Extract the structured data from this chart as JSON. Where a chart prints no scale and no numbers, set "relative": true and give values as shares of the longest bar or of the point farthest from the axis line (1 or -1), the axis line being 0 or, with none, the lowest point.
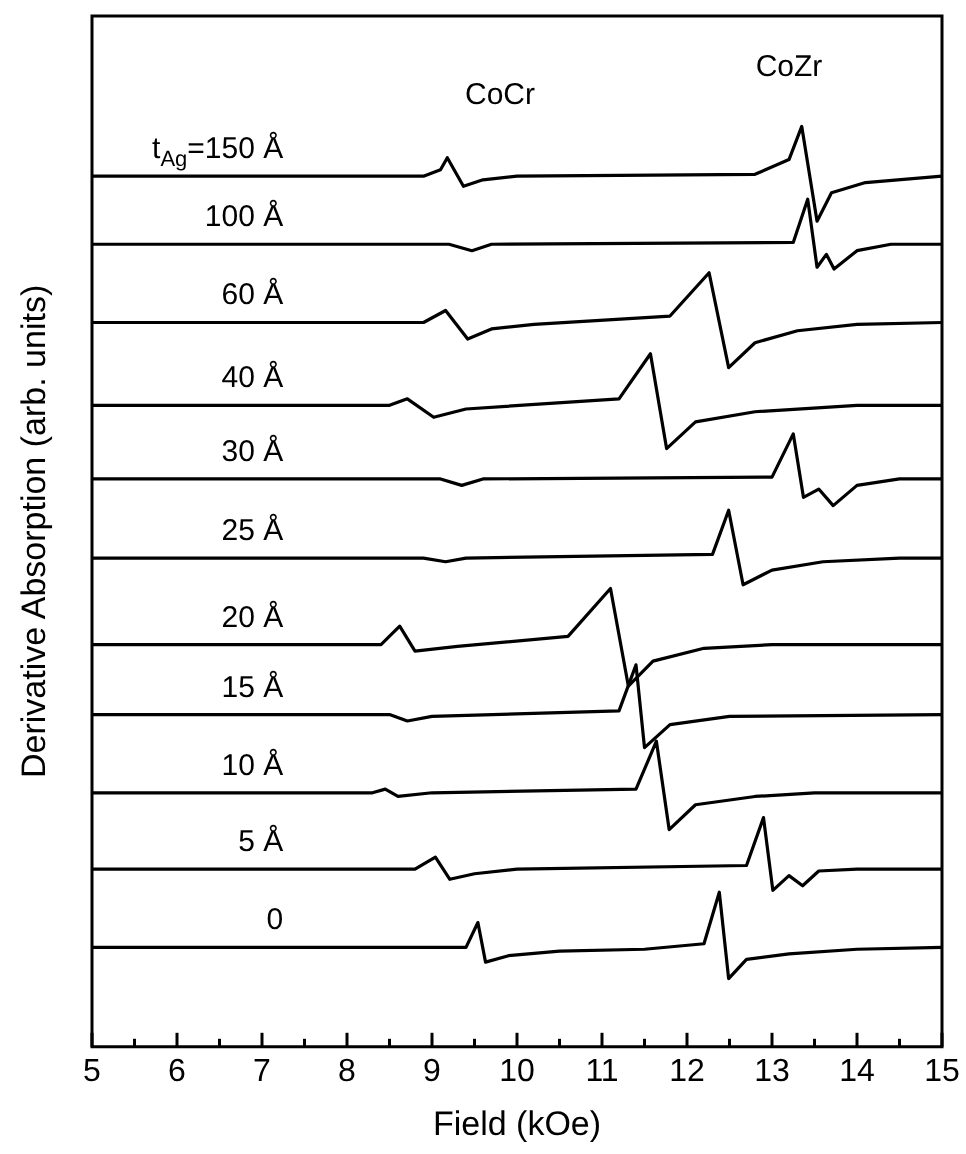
{
  "chart_data": {
    "type": "line",
    "relative": true,
    "xlabel": "Field (kOe)",
    "ylabel": "Derivative Absorption (arb. units)",
    "xlim": [
      5,
      15
    ],
    "xticks": [
      5,
      {
        "value": 5.5,
        "label": null
      },
      6,
      {
        "value": 6.5,
        "label": null
      },
      7,
      {
        "value": 7.5,
        "label": null
      },
      8,
      {
        "value": 8.5,
        "label": null
      },
      9,
      {
        "value": 9.5,
        "label": null
      },
      10,
      {
        "value": 10.5,
        "label": null
      },
      11,
      {
        "value": 11.5,
        "label": null
      },
      12,
      {
        "value": 12.5,
        "label": null
      },
      13,
      {
        "value": 13.5,
        "label": null
      },
      14,
      {
        "value": 14.5,
        "label": null
      },
      15
    ],
    "grid": false,
    "legend": false,
    "marker": "none",
    "line_style": "solid",
    "annotations": [
      "CoCr",
      "CoZr"
    ],
    "series": [
      {
        "name": "t$_{Ag}$=150 Å",
        "color": "#000000",
        "x": [
          5,
          8.9,
          9.1,
          9.18,
          9.37,
          9.6,
          10,
          12.8,
          13.2,
          13.35,
          13.53,
          13.7,
          14.1,
          15
        ],
        "values": [
          0.946,
          0.946,
          0.953,
          0.966,
          0.935,
          0.942,
          0.946,
          0.948,
          0.964,
          1.0,
          0.897,
          0.928,
          0.939,
          0.946
        ]
      },
      {
        "name": "100 Å",
        "color": "#000000",
        "x": [
          5,
          9.2,
          9.47,
          9.7,
          13.25,
          13.42,
          13.53,
          13.64,
          13.73,
          14.0,
          14.4,
          15
        ],
        "values": [
          0.872,
          0.872,
          0.865,
          0.872,
          0.874,
          0.921,
          0.847,
          0.861,
          0.845,
          0.865,
          0.872,
          0.872
        ]
      },
      {
        "name": "60 Å",
        "color": "#000000",
        "x": [
          5,
          8.9,
          9.16,
          9.42,
          9.7,
          10.2,
          11.8,
          12.26,
          12.49,
          12.8,
          13.3,
          14,
          15
        ],
        "values": [
          0.787,
          0.787,
          0.8,
          0.769,
          0.78,
          0.785,
          0.794,
          0.841,
          0.738,
          0.765,
          0.778,
          0.785,
          0.787
        ]
      },
      {
        "name": "40 Å",
        "color": "#000000",
        "x": [
          5,
          8.5,
          8.71,
          9.02,
          9.4,
          11.2,
          11.57,
          11.76,
          12.1,
          12.8,
          14,
          15
        ],
        "values": [
          0.697,
          0.697,
          0.704,
          0.684,
          0.693,
          0.704,
          0.753,
          0.65,
          0.679,
          0.69,
          0.697,
          0.697
        ]
      },
      {
        "name": "30 Å",
        "color": "#000000",
        "x": [
          5,
          9.1,
          9.35,
          9.6,
          13.0,
          13.25,
          13.37,
          13.55,
          13.72,
          14.0,
          14.5,
          15
        ],
        "values": [
          0.617,
          0.617,
          0.61,
          0.617,
          0.619,
          0.666,
          0.597,
          0.606,
          0.588,
          0.61,
          0.617,
          0.617
        ]
      },
      {
        "name": "25 Å",
        "color": "#000000",
        "x": [
          5,
          8.9,
          9.16,
          9.4,
          12.3,
          12.49,
          12.66,
          13.0,
          13.6,
          14.5,
          15
        ],
        "values": [
          0.531,
          0.531,
          0.527,
          0.531,
          0.535,
          0.583,
          0.502,
          0.518,
          0.527,
          0.531,
          0.531
        ]
      },
      {
        "name": "20 Å",
        "color": "#000000",
        "x": [
          5,
          8.4,
          8.62,
          8.8,
          9.3,
          10.6,
          11.1,
          11.31,
          11.6,
          12.2,
          13,
          15
        ],
        "values": [
          0.437,
          0.437,
          0.457,
          0.43,
          0.435,
          0.446,
          0.498,
          0.392,
          0.419,
          0.433,
          0.437,
          0.437
        ]
      },
      {
        "name": "15 Å",
        "color": "#000000",
        "x": [
          5,
          8.5,
          8.71,
          9.0,
          11.2,
          11.4,
          11.5,
          11.8,
          12.5,
          15
        ],
        "values": [
          0.361,
          0.361,
          0.354,
          0.359,
          0.365,
          0.415,
          0.325,
          0.35,
          0.359,
          0.361
        ]
      },
      {
        "name": "10 Å",
        "color": "#000000",
        "x": [
          5,
          8.3,
          8.45,
          8.6,
          9.0,
          11.4,
          11.64,
          11.79,
          12.1,
          12.8,
          13.5,
          15
        ],
        "values": [
          0.276,
          0.276,
          0.28,
          0.272,
          0.276,
          0.28,
          0.332,
          0.236,
          0.263,
          0.272,
          0.276,
          0.276
        ]
      },
      {
        "name": "5 Å",
        "color": "#000000",
        "x": [
          5,
          8.8,
          9.04,
          9.21,
          9.5,
          10,
          12.7,
          12.9,
          13.01,
          13.2,
          13.36,
          13.55,
          14,
          15
        ],
        "values": [
          0.193,
          0.193,
          0.206,
          0.182,
          0.188,
          0.193,
          0.197,
          0.249,
          0.17,
          0.186,
          0.175,
          0.191,
          0.193,
          0.193
        ]
      },
      {
        "name": "0",
        "color": "#000000",
        "x": [
          5,
          9.4,
          9.54,
          9.63,
          9.9,
          10.5,
          11.5,
          12.2,
          12.38,
          12.49,
          12.7,
          13.2,
          14,
          15
        ],
        "values": [
          0.108,
          0.108,
          0.135,
          0.092,
          0.099,
          0.104,
          0.106,
          0.112,
          0.168,
          0.074,
          0.095,
          0.101,
          0.106,
          0.108
        ]
      }
    ]
  }
}
